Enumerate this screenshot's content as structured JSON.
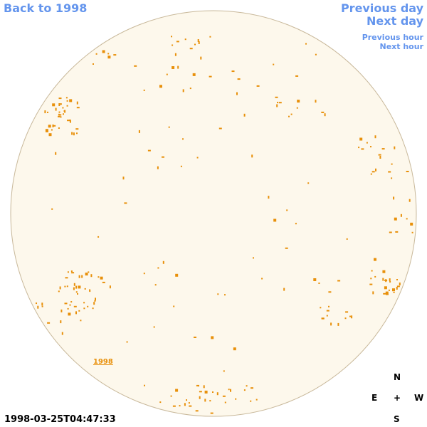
{
  "nav": {
    "back": "Back to 1998",
    "previous_day": "Previous day",
    "next_day": "Next day",
    "previous_hour": "Previous hour",
    "next_hour": "Next hour"
  },
  "disk": {
    "label": "1998"
  },
  "timestamp": "1998-03-25T04:47:33",
  "compass": {
    "north": "N",
    "east": "E",
    "center": "+",
    "west": "W",
    "south": "S"
  }
}
